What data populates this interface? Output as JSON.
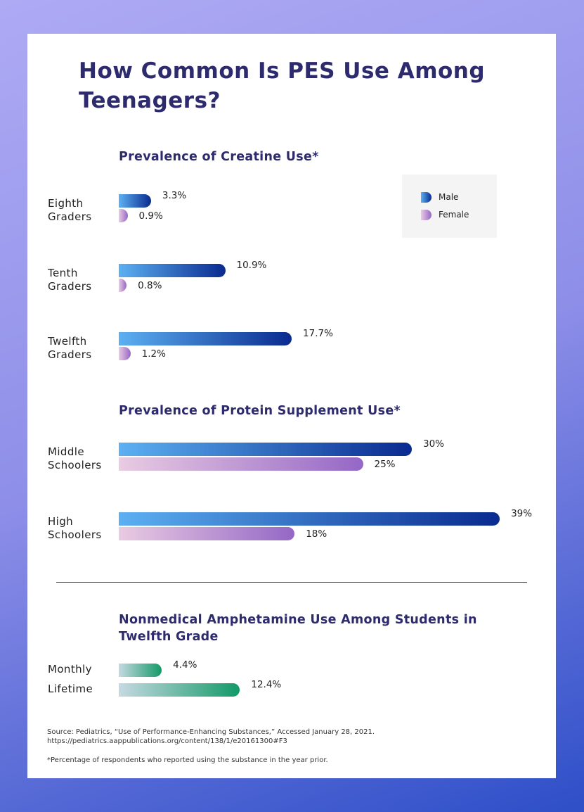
{
  "title": "How Common Is PES Use Among Teenagers?",
  "chart_data": [
    {
      "type": "bar",
      "orientation": "horizontal",
      "title": "Prevalence of Creatine Use*",
      "categories": [
        "Eighth Graders",
        "Tenth Graders",
        "Twelfth Graders"
      ],
      "series": [
        {
          "name": "Male",
          "color": [
            "#5cb0f2",
            "#0a2a8f"
          ],
          "values": [
            3.3,
            10.9,
            17.7
          ],
          "value_labels": [
            "3.3%",
            "10.9%",
            "17.7%"
          ]
        },
        {
          "name": "Female",
          "color": [
            "#e9cbe2",
            "#9467c6"
          ],
          "values": [
            0.9,
            0.8,
            1.2
          ],
          "value_labels": [
            "0.9%",
            "0.8%",
            "1.2%"
          ]
        }
      ],
      "legend": "top-right"
    },
    {
      "type": "bar",
      "orientation": "horizontal",
      "title": "Prevalence of Protein Supplement Use*",
      "categories": [
        "Middle Schoolers",
        "High Schoolers"
      ],
      "series": [
        {
          "name": "Male",
          "color": [
            "#5cb0f2",
            "#0a2a8f"
          ],
          "values": [
            30,
            39
          ],
          "value_labels": [
            "30%",
            "39%"
          ]
        },
        {
          "name": "Female",
          "color": [
            "#e9cbe2",
            "#9467c6"
          ],
          "values": [
            25,
            18
          ],
          "value_labels": [
            "25%",
            "18%"
          ]
        }
      ]
    },
    {
      "type": "bar",
      "orientation": "horizontal",
      "title": "Nonmedical Amphetamine Use Among Students in Twelfth Grade",
      "categories": [
        "Monthly",
        "Lifetime"
      ],
      "values": [
        4.4,
        12.4
      ],
      "value_labels": [
        "4.4%",
        "12.4%"
      ],
      "color": [
        "#c6d9e2",
        "#139a68"
      ]
    }
  ],
  "source": "Source: Pediatrics, “Use of Performance-Enhancing Substances,” Accessed January 28, 2021. https://pediatrics.aappublications.org/content/138/1/e20161300#F3",
  "footnote": "*Percentage of respondents who reported using the substance in the year prior."
}
